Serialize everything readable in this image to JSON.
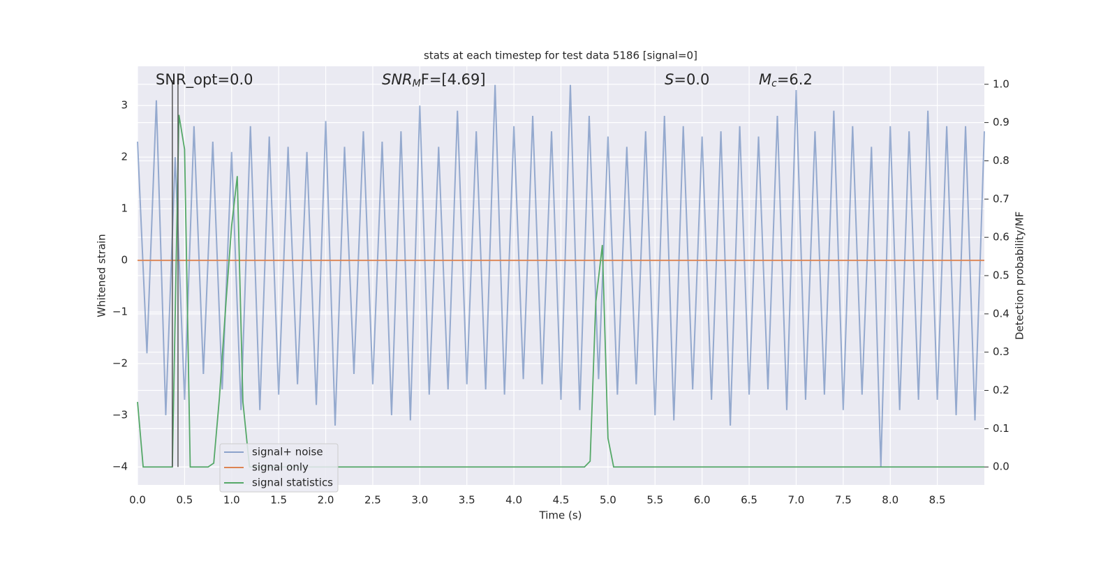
{
  "chart_data": {
    "type": "line",
    "title": "stats at each timestep for test data 5186 [signal=0]",
    "xlabel": "Time (s)",
    "ylabel": "Whitened strain",
    "y2label": "Detection probability/MF",
    "annotations": [
      [
        "SNR_opt=0.0"
      ],
      [
        "SNR",
        "M",
        "F=[4.69]"
      ],
      [
        "S",
        "=0.0"
      ],
      [
        "M",
        "c",
        "=6.2"
      ]
    ],
    "xlim": [
      0,
      9.0
    ],
    "ylim": [
      -4.35,
      3.76
    ],
    "y2lim": [
      -0.047,
      1.047
    ],
    "xticks": [
      {
        "value": 0,
        "label": "0.0"
      },
      {
        "value": 0.5,
        "label": "0.5"
      },
      {
        "value": 1,
        "label": "1.0"
      },
      {
        "value": 1.5,
        "label": "1.5"
      },
      {
        "value": 2,
        "label": "2.0"
      },
      {
        "value": 2.5,
        "label": "2.5"
      },
      {
        "value": 3,
        "label": "3.0"
      },
      {
        "value": 3.5,
        "label": "3.5"
      },
      {
        "value": 4,
        "label": "4.0"
      },
      {
        "value": 4.5,
        "label": "4.5"
      },
      {
        "value": 5,
        "label": "5.0"
      },
      {
        "value": 5.5,
        "label": "5.5"
      },
      {
        "value": 6,
        "label": "6.0"
      },
      {
        "value": 6.5,
        "label": "6.5"
      },
      {
        "value": 7,
        "label": "7.0"
      },
      {
        "value": 7.5,
        "label": "7.5"
      },
      {
        "value": 8,
        "label": "8.0"
      },
      {
        "value": 8.5,
        "label": "8.5"
      }
    ],
    "yticks": [
      {
        "value": -4,
        "label": "−4"
      },
      {
        "value": -3,
        "label": "−3"
      },
      {
        "value": -2,
        "label": "−2"
      },
      {
        "value": -1,
        "label": "−1"
      },
      0,
      1,
      2,
      3
    ],
    "y2ticks": [
      {
        "value": 0,
        "label": "0.0"
      },
      {
        "value": 0.1,
        "label": "0.1"
      },
      {
        "value": 0.2,
        "label": "0.2"
      },
      {
        "value": 0.3,
        "label": "0.3"
      },
      {
        "value": 0.4,
        "label": "0.4"
      },
      {
        "value": 0.5,
        "label": "0.5"
      },
      {
        "value": 0.6,
        "label": "0.6"
      },
      {
        "value": 0.7,
        "label": "0.7"
      },
      {
        "value": 0.8,
        "label": "0.8"
      },
      {
        "value": 0.9,
        "label": "0.9"
      },
      {
        "value": 1,
        "label": "1.0"
      }
    ],
    "grid": true,
    "legend": "lower left",
    "vlines": [
      0.37,
      0.43
    ],
    "vline_color": "#555555",
    "series": [
      {
        "name": "signal+ noise",
        "color": "#4c72b0",
        "x": [
          0,
          0.1,
          0.2,
          0.3,
          0.4,
          0.5,
          0.6,
          0.7,
          0.8,
          0.9,
          1,
          1.1,
          1.2,
          1.3,
          1.4,
          1.5,
          1.6,
          1.7,
          1.8,
          1.9,
          2,
          2.1,
          2.2,
          2.3,
          2.4,
          2.5,
          2.6,
          2.7,
          2.8,
          2.9,
          3,
          3.1,
          3.2,
          3.3,
          3.4,
          3.5,
          3.6,
          3.7,
          3.8,
          3.9,
          4,
          4.1,
          4.2,
          4.3,
          4.4,
          4.5,
          4.6,
          4.7,
          4.8,
          4.9,
          5,
          5.1,
          5.2,
          5.3,
          5.4,
          5.5,
          5.6,
          5.7,
          5.8,
          5.9,
          6,
          6.1,
          6.2,
          6.3,
          6.4,
          6.5,
          6.6,
          6.7,
          6.8,
          6.9,
          7,
          7.1,
          7.2,
          7.3,
          7.4,
          7.5,
          7.6,
          7.7,
          7.8,
          7.9,
          8,
          8.1,
          8.2,
          8.3,
          8.4,
          8.5,
          8.6,
          8.7,
          8.8,
          8.9,
          9.0
        ],
        "values": [
          2.3,
          -1.8,
          3.1,
          -3.0,
          2.0,
          -2.7,
          2.6,
          -2.2,
          2.3,
          -2.5,
          2.1,
          -2.9,
          2.6,
          -2.9,
          2.4,
          -2.6,
          2.2,
          -2.4,
          2.1,
          -2.8,
          2.7,
          -3.2,
          2.2,
          -2.2,
          2.5,
          -2.4,
          2.3,
          -3.0,
          2.5,
          -3.1,
          3.0,
          -2.6,
          2.2,
          -2.5,
          2.9,
          -2.4,
          2.5,
          -2.5,
          3.4,
          -2.6,
          2.6,
          -2.3,
          2.8,
          -2.4,
          2.5,
          -2.7,
          3.4,
          -2.9,
          2.8,
          -2.3,
          2.4,
          -2.6,
          2.2,
          -2.4,
          2.5,
          -3.0,
          2.8,
          -3.1,
          2.6,
          -2.5,
          2.4,
          -2.7,
          2.5,
          -3.2,
          2.6,
          -2.6,
          2.4,
          -2.5,
          2.8,
          -2.9,
          3.3,
          -2.7,
          2.5,
          -2.6,
          2.9,
          -2.9,
          2.6,
          -2.6,
          2.2,
          -4.0,
          2.6,
          -2.9,
          2.5,
          -2.7,
          2.9,
          -2.7,
          2.6,
          -3.0,
          2.6,
          -3.1,
          2.5
        ]
      },
      {
        "name": "signal only",
        "color": "#dd8452",
        "x": [
          0,
          9.0
        ],
        "values": [
          0,
          0
        ]
      },
      {
        "name": "signal statistics",
        "color": "#55a868",
        "axis": "y2",
        "x": [
          0,
          0.06,
          0.12,
          0.37,
          0.44,
          0.5,
          0.56,
          0.75,
          0.81,
          0.87,
          0.94,
          1.0,
          1.06,
          1.12,
          1.19,
          4.75,
          4.81,
          4.87,
          4.94,
          5.0,
          5.06,
          9.0
        ],
        "values": [
          0.17,
          0.0,
          0.0,
          0.0,
          0.92,
          0.83,
          0.0,
          0.0,
          0.01,
          0.18,
          0.43,
          0.63,
          0.76,
          0.17,
          0.0,
          0.0,
          0.015,
          0.43,
          0.58,
          0.075,
          0.0,
          0.0
        ]
      }
    ]
  }
}
